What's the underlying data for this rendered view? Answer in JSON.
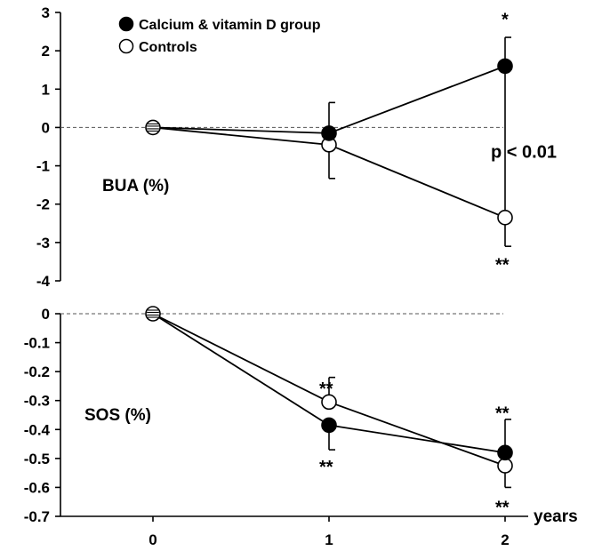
{
  "colors": {
    "filled": "#000000",
    "open": "#ffffff",
    "axis": "#000000",
    "reference": "#555555"
  },
  "chart_data": [
    {
      "type": "line",
      "title": "BUA (%)",
      "ylim": [
        -4,
        3
      ],
      "yticks": [
        3,
        2,
        1,
        0,
        -1,
        -2,
        -3,
        -4
      ],
      "reference_line": 0,
      "x": [
        0,
        1,
        2
      ],
      "legend": {
        "placement": "top-left",
        "entries": [
          "Calcium & vitamin D group",
          "Controls"
        ]
      },
      "series": [
        {
          "name": "Calcium & vitamin D group",
          "marker": "filled-circle",
          "values": [
            0,
            -0.15,
            1.6
          ],
          "error_upper": [
            null,
            0.65,
            2.35
          ],
          "error_lower": [
            null,
            null,
            null
          ]
        },
        {
          "name": "Controls",
          "marker": "open-circle",
          "values": [
            0,
            -0.45,
            -2.35
          ],
          "error_upper": [
            null,
            null,
            null
          ],
          "error_lower": [
            null,
            -1.33,
            -3.1
          ]
        }
      ],
      "annotations": [
        {
          "text": "*",
          "x": 2,
          "y": 2.85
        },
        {
          "text": "p < 0.01",
          "x": 2,
          "y": -0.6
        },
        {
          "text": "**",
          "x": 2,
          "y": -3.55
        }
      ],
      "bracket": {
        "x": 2,
        "from": 1.6,
        "to": -2.35
      }
    },
    {
      "type": "line",
      "title": "SOS (%)",
      "ylim": [
        -0.7,
        0
      ],
      "yticks": [
        0,
        -0.1,
        -0.2,
        -0.3,
        -0.4,
        -0.5,
        -0.6,
        -0.7
      ],
      "reference_line": 0,
      "x": [
        0,
        1,
        2
      ],
      "xticks": [
        "0",
        "1",
        "2"
      ],
      "xlabel": "years",
      "series": [
        {
          "name": "Calcium & vitamin D group",
          "marker": "filled-circle",
          "values": [
            0,
            -0.385,
            -0.48
          ],
          "error_upper": [
            null,
            null,
            -0.365
          ],
          "error_lower": [
            null,
            -0.47,
            null
          ]
        },
        {
          "name": "Controls",
          "marker": "open-circle",
          "values": [
            0,
            -0.305,
            -0.525
          ],
          "error_upper": [
            null,
            -0.22,
            null
          ],
          "error_lower": [
            null,
            null,
            -0.6
          ]
        }
      ],
      "annotations": [
        {
          "text": "**",
          "x": 1,
          "y": -0.255
        },
        {
          "text": "**",
          "x": 1,
          "y": -0.525
        },
        {
          "text": "**",
          "x": 2,
          "y": -0.34
        },
        {
          "text": "**",
          "x": 2,
          "y": -0.665
        }
      ]
    }
  ]
}
